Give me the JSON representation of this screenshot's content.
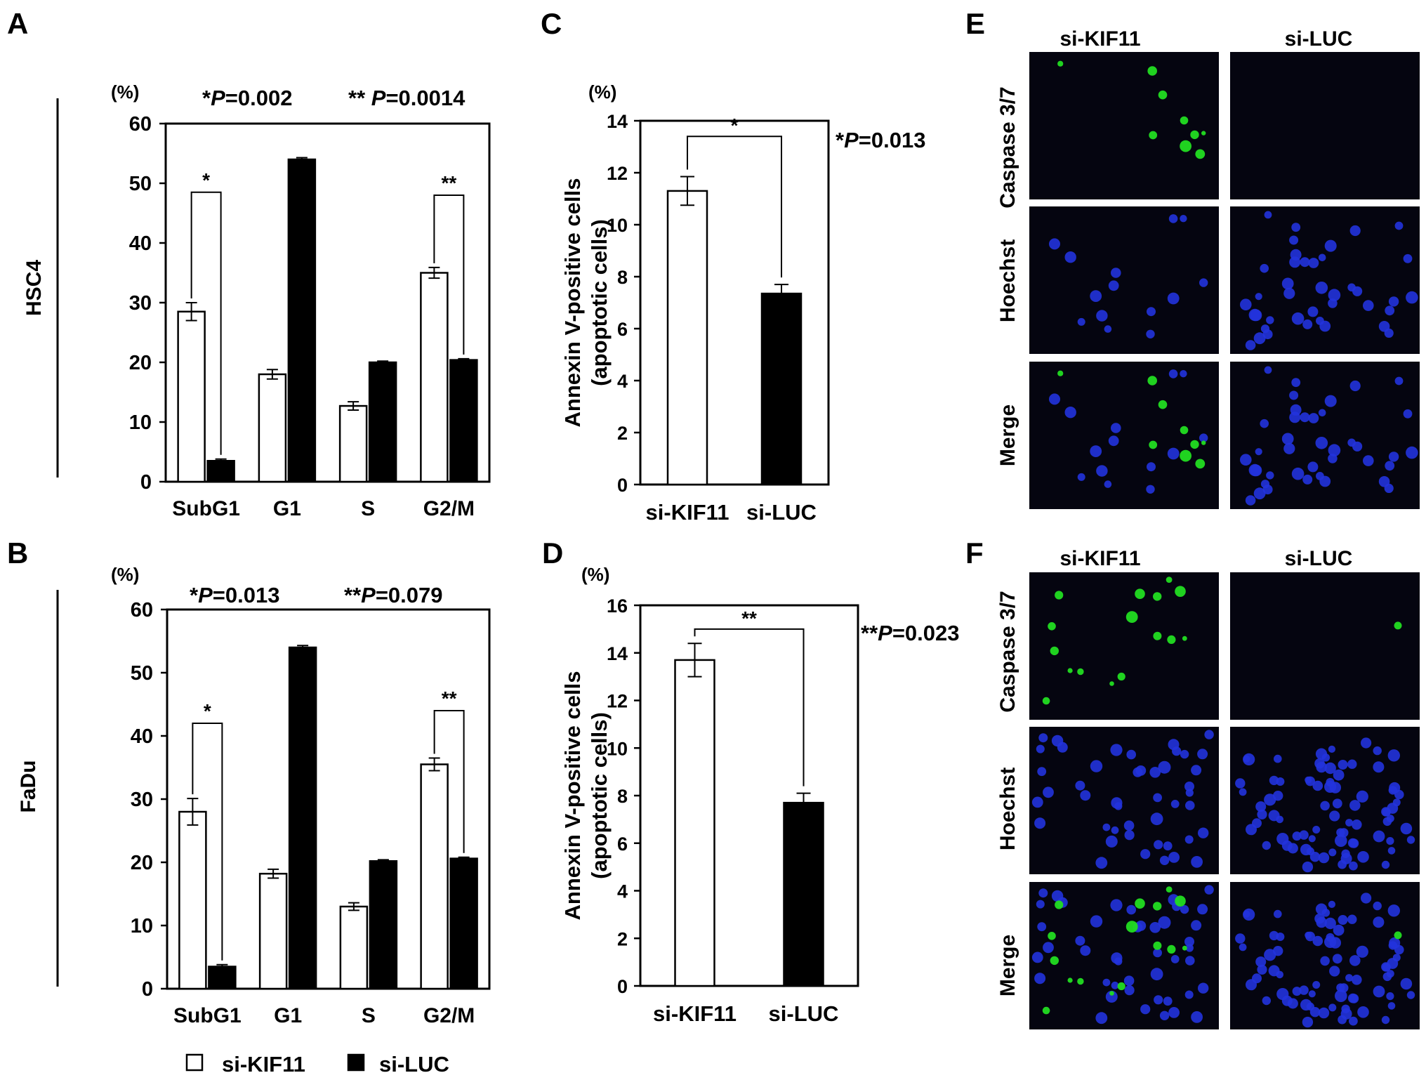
{
  "panels": {
    "A": {
      "letter": "A",
      "cell_line": "HSC4",
      "unit": "(%)",
      "pvalue_1": {
        "stars": "*",
        "p": "P",
        "value": "=0.002"
      },
      "pvalue_2": {
        "stars": "** ",
        "p": "P",
        "value": "=0.0014"
      }
    },
    "B": {
      "letter": "B",
      "cell_line": "FaDu",
      "unit": "(%)",
      "pvalue_1": {
        "stars": "*",
        "p": "P",
        "value": "=0.013"
      },
      "pvalue_2": {
        "stars": "**",
        "p": "P",
        "value": "=0.079"
      }
    },
    "C": {
      "letter": "C",
      "unit": "(%)",
      "pvalue": {
        "stars": "*",
        "p": "P",
        "value": "=0.013"
      }
    },
    "D": {
      "letter": "D",
      "unit": "(%)",
      "pvalue": {
        "stars": "**",
        "p": "P",
        "value": "=0.023"
      }
    },
    "E": {
      "letter": "E"
    },
    "F": {
      "letter": "F"
    }
  },
  "legend": {
    "open": "si-KIF11",
    "filled": "si-LUC"
  },
  "micrographs": {
    "col_left": "si-KIF11",
    "col_right": "si-LUC",
    "rows": [
      "Caspase 3/7",
      "Hoechst",
      "Merge"
    ],
    "colors": {
      "caspase": "#22dd22",
      "hoechst": "#2233dd",
      "background": "#050510"
    }
  },
  "chart_data": [
    {
      "panel": "A",
      "type": "bar",
      "categories": [
        "SubG1",
        "G1",
        "S",
        "G2/M"
      ],
      "series": [
        {
          "name": "si-KIF11",
          "fill": "#ffffff",
          "values": [
            28.5,
            18.0,
            12.7,
            35.0
          ],
          "errors": [
            1.5,
            0.8,
            0.7,
            0.9
          ]
        },
        {
          "name": "si-LUC",
          "fill": "#000000",
          "values": [
            3.5,
            54.0,
            20.0,
            20.4
          ],
          "errors": [
            0.3,
            0.3,
            0.2,
            0.2
          ]
        }
      ],
      "ylim": [
        0,
        60
      ],
      "yticks": [
        0,
        10,
        20,
        30,
        40,
        50,
        60
      ],
      "brackets": [
        {
          "category": 0,
          "y": 48.5,
          "label": "*"
        },
        {
          "category": 3,
          "y": 48.0,
          "label": "**"
        }
      ]
    },
    {
      "panel": "B",
      "type": "bar",
      "categories": [
        "SubG1",
        "G1",
        "S",
        "G2/M"
      ],
      "series": [
        {
          "name": "si-KIF11",
          "fill": "#ffffff",
          "values": [
            28.0,
            18.2,
            13.0,
            35.5
          ],
          "errors": [
            2.1,
            0.7,
            0.6,
            1.0
          ]
        },
        {
          "name": "si-LUC",
          "fill": "#000000",
          "values": [
            3.5,
            54.0,
            20.2,
            20.6
          ],
          "errors": [
            0.3,
            0.3,
            0.2,
            0.2
          ]
        }
      ],
      "ylim": [
        0,
        60
      ],
      "yticks": [
        0,
        10,
        20,
        30,
        40,
        50,
        60
      ],
      "brackets": [
        {
          "category": 0,
          "y": 42.0,
          "label": "*"
        },
        {
          "category": 3,
          "y": 44.0,
          "label": "**"
        }
      ]
    },
    {
      "panel": "C",
      "type": "bar",
      "categories": [
        "si-KIF11",
        "si-LUC"
      ],
      "values": [
        11.3,
        7.35
      ],
      "errors": [
        0.55,
        0.35
      ],
      "fills": [
        "#ffffff",
        "#000000"
      ],
      "ylabel_1": "Annexin V-positive cells",
      "ylabel_2": "(apoptotic cells)",
      "ylim": [
        0,
        14
      ],
      "yticks": [
        0,
        2,
        4,
        6,
        8,
        10,
        12,
        14
      ],
      "bracket": {
        "y": 13.4,
        "label": "*"
      }
    },
    {
      "panel": "D",
      "type": "bar",
      "categories": [
        "si-KIF11",
        "si-LUC"
      ],
      "values": [
        13.7,
        7.7
      ],
      "errors": [
        0.7,
        0.4
      ],
      "fills": [
        "#ffffff",
        "#000000"
      ],
      "ylabel_1": "Annexin V-positive cells",
      "ylabel_2": "(apoptotic cells)",
      "ylim": [
        0,
        16
      ],
      "yticks": [
        0,
        2,
        4,
        6,
        8,
        10,
        12,
        14,
        16
      ],
      "bracket": {
        "y": 15.0,
        "label": "**"
      }
    }
  ]
}
